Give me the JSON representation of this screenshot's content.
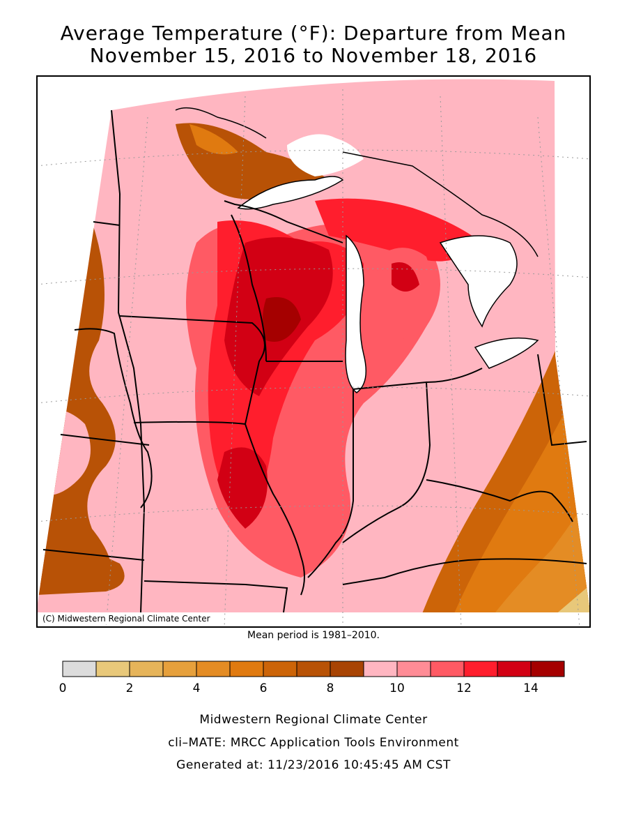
{
  "title_line1": "Average Temperature (°F): Departure from Mean",
  "title_line2": "November 15, 2016 to November 18, 2016",
  "map_credit": "(C) Midwestern Regional Climate Center",
  "mean_period": "Mean period is 1981–2010.",
  "legend": {
    "colors": [
      "#dcdcdc",
      "#e8c87a",
      "#e6b45a",
      "#e6a03c",
      "#e48c24",
      "#e07a10",
      "#cc6408",
      "#b85206",
      "#a84404",
      "#ffb6c1",
      "#ff8c96",
      "#ff5a64",
      "#ff1e2d",
      "#d20014",
      "#a50000"
    ],
    "ticks": [
      "0",
      "2",
      "4",
      "6",
      "8",
      "10",
      "12",
      "14"
    ]
  },
  "footer_line1": "Midwestern Regional Climate Center",
  "footer_line2": "cli–MATE: MRCC Application Tools Environment",
  "footer_line3": "Generated at: 11/23/2016 10:45:45 AM CST"
}
